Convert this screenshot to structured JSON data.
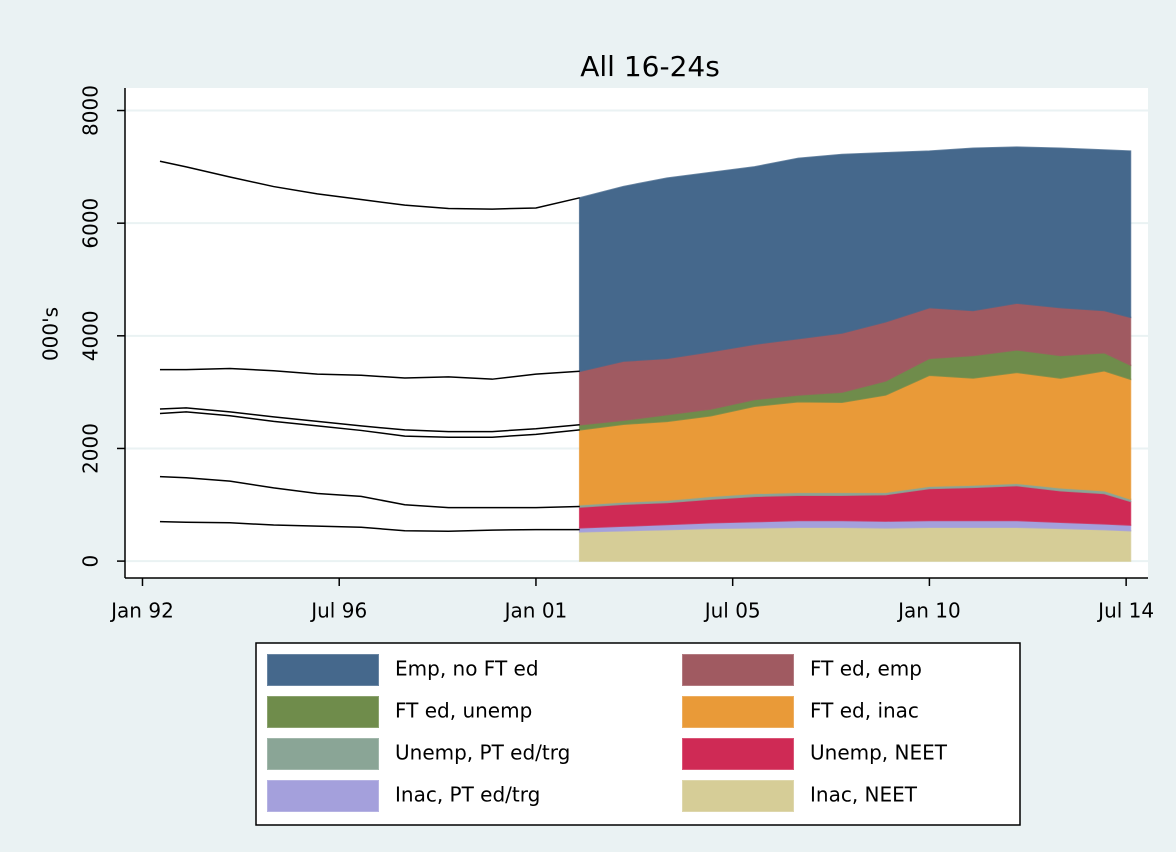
{
  "chart_data": {
    "type": "area",
    "title": "All 16-24s",
    "y_label": "000's",
    "x": [
      1992.4,
      1993,
      1994,
      1995,
      1996,
      1997,
      1998,
      1999,
      2000,
      2001,
      2002,
      2003,
      2004,
      2005,
      2006,
      2007,
      2008,
      2009,
      2010,
      2011,
      2012,
      2013,
      2014,
      2014.6
    ],
    "xlim": [
      1991.6,
      2015
    ],
    "xticks": [
      {
        "value": 1992,
        "label": "Jan 92"
      },
      {
        "value": 1996.5,
        "label": "Jul 96"
      },
      {
        "value": 2001,
        "label": "Jan 01"
      },
      {
        "value": 2005.5,
        "label": "Jul 05"
      },
      {
        "value": 2010,
        "label": "Jan 10"
      },
      {
        "value": 2014.5,
        "label": "Jul 14"
      }
    ],
    "ylim": [
      -300,
      8400
    ],
    "yticks": [
      0,
      2000,
      4000,
      6000,
      8000
    ],
    "grid": true,
    "series": [
      {
        "name": "Emp, no FT ed",
        "color": "#45688c",
        "values": [
          null,
          null,
          null,
          null,
          null,
          null,
          null,
          null,
          null,
          null,
          3080,
          3100,
          3200,
          3180,
          3150,
          3200,
          3170,
          3000,
          2780,
          2880,
          2770,
          2830,
          2850,
          2950
        ]
      },
      {
        "name": "FT ed, emp",
        "color": "#a05a61",
        "values": [
          null,
          null,
          null,
          null,
          null,
          null,
          null,
          null,
          null,
          null,
          950,
          1050,
          1000,
          1020,
          980,
          1000,
          1050,
          1050,
          900,
          800,
          830,
          850,
          750,
          850
        ]
      },
      {
        "name": "FT ed, unemp",
        "color": "#6f8c4b",
        "values": [
          null,
          null,
          null,
          null,
          null,
          null,
          null,
          null,
          null,
          null,
          90,
          70,
          120,
          120,
          120,
          120,
          180,
          250,
          300,
          400,
          400,
          400,
          320,
          250
        ]
      },
      {
        "name": "FT ed, inac",
        "color": "#e99a38",
        "values": [
          null,
          null,
          null,
          null,
          null,
          null,
          null,
          null,
          null,
          null,
          1330,
          1380,
          1400,
          1430,
          1550,
          1610,
          1600,
          1730,
          1970,
          1900,
          1970,
          1950,
          2130,
          2130
        ]
      },
      {
        "name": "Unemp, PT ed/trg",
        "color": "#8aa596",
        "values": [
          null,
          null,
          null,
          null,
          null,
          null,
          null,
          null,
          null,
          null,
          40,
          40,
          40,
          50,
          50,
          50,
          50,
          40,
          40,
          40,
          40,
          50,
          50,
          40
        ]
      },
      {
        "name": "Unemp, NEET",
        "color": "#cf2a55",
        "values": [
          null,
          null,
          null,
          null,
          null,
          null,
          null,
          null,
          null,
          null,
          370,
          390,
          390,
          420,
          450,
          450,
          450,
          470,
          570,
          590,
          620,
          560,
          540,
          420
        ]
      },
      {
        "name": "Inac, PT ed/trg",
        "color": "#a4a0dc",
        "values": [
          null,
          null,
          null,
          null,
          null,
          null,
          null,
          null,
          null,
          null,
          70,
          80,
          90,
          100,
          110,
          120,
          120,
          120,
          120,
          120,
          120,
          110,
          100,
          100
        ]
      },
      {
        "name": "Inac, NEET",
        "color": "#d6cd97",
        "values": [
          null,
          null,
          null,
          null,
          null,
          null,
          null,
          null,
          null,
          null,
          520,
          540,
          560,
          580,
          590,
          600,
          600,
          590,
          600,
          600,
          600,
          580,
          560,
          540
        ]
      }
    ],
    "lines": [
      {
        "color": "#000000",
        "values": [
          7100,
          7000,
          6820,
          6650,
          6520,
          6420,
          6320,
          6260,
          6250,
          6270,
          6450,
          null,
          null,
          null,
          null,
          null,
          null,
          null,
          null,
          null,
          null,
          null,
          null,
          null
        ]
      },
      {
        "color": "#000000",
        "values": [
          3400,
          3400,
          3420,
          3380,
          3320,
          3300,
          3250,
          3270,
          3230,
          3320,
          3370,
          null,
          null,
          null,
          null,
          null,
          null,
          null,
          null,
          null,
          null,
          null,
          null,
          null
        ]
      },
      {
        "color": "#000000",
        "values": [
          2700,
          2720,
          2650,
          2560,
          2480,
          2400,
          2330,
          2300,
          2300,
          2350,
          2420,
          null,
          null,
          null,
          null,
          null,
          null,
          null,
          null,
          null,
          null,
          null,
          null,
          null
        ]
      },
      {
        "color": "#000000",
        "values": [
          2620,
          2650,
          2580,
          2480,
          2400,
          2320,
          2220,
          2200,
          2200,
          2250,
          2330,
          null,
          null,
          null,
          null,
          null,
          null,
          null,
          null,
          null,
          null,
          null,
          null,
          null
        ]
      },
      {
        "color": "#000000",
        "values": [
          1500,
          1480,
          1420,
          1300,
          1200,
          1150,
          1000,
          950,
          950,
          950,
          970,
          null,
          null,
          null,
          null,
          null,
          null,
          null,
          null,
          null,
          null,
          null,
          null,
          null
        ]
      },
      {
        "color": "#000000",
        "values": [
          700,
          690,
          680,
          640,
          620,
          600,
          540,
          530,
          550,
          560,
          560,
          null,
          null,
          null,
          null,
          null,
          null,
          null,
          null,
          null,
          null,
          null,
          null,
          null
        ]
      }
    ]
  }
}
